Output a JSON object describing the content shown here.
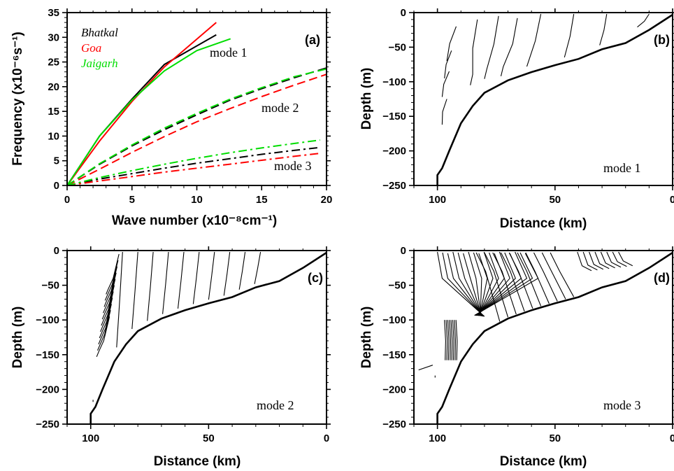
{
  "chart_data": [
    {
      "type": "line",
      "panel_label": "(a)",
      "xlabel": "Wave number (x10⁻⁸cm⁻¹)",
      "ylabel": "Frequency (x10⁻⁶s⁻¹)",
      "xlim": [
        0,
        20
      ],
      "ylim": [
        0,
        35
      ],
      "x_ticks": [
        "0",
        "5",
        "10",
        "15",
        "20"
      ],
      "y_ticks": [
        "0",
        "5",
        "10",
        "15",
        "20",
        "25",
        "30",
        "35"
      ],
      "grid": false,
      "legend": {
        "placement": "top-left",
        "entries": [
          {
            "name": "Bhatkal",
            "color": "#000000"
          },
          {
            "name": "Goa",
            "color": "#ff0000"
          },
          {
            "name": "Jaigarh",
            "color": "#00dd00"
          }
        ]
      },
      "annotations": [
        "mode 1",
        "mode 2",
        "mode 3"
      ],
      "series": [
        {
          "name": "Bhatkal",
          "mode": "mode 1",
          "style": "solid",
          "color": "#000000",
          "x": [
            0,
            2.5,
            5,
            7.5,
            9.5,
            11.5
          ],
          "y": [
            0,
            10,
            17.5,
            24.5,
            27.5,
            30.5
          ]
        },
        {
          "name": "Goa",
          "mode": "mode 1",
          "style": "solid",
          "color": "#ff0000",
          "x": [
            0,
            2.5,
            5,
            7.5,
            9.5,
            11.5
          ],
          "y": [
            0,
            9,
            17,
            24,
            28.5,
            33
          ]
        },
        {
          "name": "Jaigarh",
          "mode": "mode 1",
          "style": "solid",
          "color": "#00dd00",
          "x": [
            0,
            2.5,
            5,
            7.5,
            10,
            12.6
          ],
          "y": [
            0,
            10,
            17.3,
            23.2,
            27.3,
            29.7
          ]
        },
        {
          "name": "Bhatkal",
          "mode": "mode 2",
          "style": "dashed",
          "color": "#000000",
          "x": [
            0,
            2.5,
            5,
            7.5,
            10,
            12.5,
            15,
            17.5,
            20
          ],
          "y": [
            0,
            4.3,
            8,
            11.3,
            14.3,
            17.2,
            19.6,
            21.8,
            23.8
          ]
        },
        {
          "name": "Goa",
          "mode": "mode 2",
          "style": "dashed",
          "color": "#ff0000",
          "x": [
            0,
            2.5,
            5,
            7.5,
            10,
            12.5,
            15,
            17.5,
            20
          ],
          "y": [
            0,
            3.3,
            6.7,
            9.9,
            12.9,
            15.5,
            18,
            20.3,
            22.5
          ]
        },
        {
          "name": "Jaigarh",
          "mode": "mode 2",
          "style": "dashed",
          "color": "#00dd00",
          "x": [
            0,
            2.5,
            5,
            7.5,
            10,
            12.5,
            15,
            17.5,
            20
          ],
          "y": [
            0,
            4.4,
            8.2,
            11.6,
            14.6,
            17.4,
            19.8,
            22,
            23.6
          ]
        },
        {
          "name": "Bhatkal",
          "mode": "mode 3",
          "style": "dash-dot",
          "color": "#000000",
          "x": [
            0,
            2.5,
            5,
            7.5,
            10,
            12.5,
            15,
            17.5,
            19.5
          ],
          "y": [
            0,
            1.3,
            2.4,
            3.5,
            4.5,
            5.4,
            6.3,
            7.1,
            7.7
          ]
        },
        {
          "name": "Goa",
          "mode": "mode 3",
          "style": "dash-dot",
          "color": "#ff0000",
          "x": [
            0,
            2.5,
            5,
            7.5,
            10,
            12.5,
            15,
            17.5,
            19.5
          ],
          "y": [
            0,
            0.9,
            1.8,
            2.7,
            3.5,
            4.3,
            5.1,
            5.9,
            6.5
          ]
        },
        {
          "name": "Jaigarh",
          "mode": "mode 3",
          "style": "dash-dot",
          "color": "#00dd00",
          "x": [
            0,
            2.5,
            5,
            7.5,
            10,
            12.5,
            15,
            17.5,
            19.5
          ],
          "y": [
            0,
            1.6,
            3,
            4.3,
            5.5,
            6.6,
            7.6,
            8.5,
            9.2
          ]
        }
      ]
    },
    {
      "type": "line",
      "panel_label": "(b)",
      "annotation": "mode 1",
      "xlabel": "Distance (km)",
      "ylabel": "Depth (m)",
      "xlim": [
        110,
        0
      ],
      "ylim": [
        -250,
        0
      ],
      "x_ticks": [
        "100",
        "50",
        "0"
      ],
      "y_ticks": [
        "0",
        "−50",
        "−100",
        "−150",
        "−200",
        "−250"
      ],
      "bathymetry": {
        "distance_km": [
          0,
          10,
          20,
          30,
          40,
          50,
          60,
          70,
          80,
          85,
          90,
          95,
          98,
          100,
          100
        ],
        "depth_m": [
          -3,
          -25,
          -44,
          -53,
          -67,
          -76,
          -86,
          -98,
          -116,
          -135,
          -160,
          -200,
          -225,
          -235,
          -250
        ]
      },
      "contours": {
        "color": "#000000",
        "style": "thin solid isolines"
      }
    },
    {
      "type": "line",
      "panel_label": "(c)",
      "annotation": "mode 2",
      "xlabel": "Distance (km)",
      "ylabel": "Depth (m)",
      "xlim": [
        110,
        0
      ],
      "ylim": [
        -250,
        0
      ],
      "x_ticks": [
        "100",
        "50",
        "0"
      ],
      "y_ticks": [
        "0",
        "−50",
        "−100",
        "−150",
        "−200",
        "−250"
      ],
      "bathymetry": {
        "distance_km": [
          0,
          10,
          20,
          30,
          40,
          50,
          60,
          70,
          80,
          85,
          90,
          95,
          98,
          100,
          100
        ],
        "depth_m": [
          -3,
          -25,
          -44,
          -53,
          -67,
          -76,
          -86,
          -98,
          -116,
          -135,
          -160,
          -200,
          -225,
          -235,
          -250
        ]
      },
      "contours": {
        "color": "#000000",
        "style": "thin solid isolines"
      }
    },
    {
      "type": "line",
      "panel_label": "(d)",
      "annotation": "mode 3",
      "xlabel": "Distance (km)",
      "ylabel": "Depth (m)",
      "xlim": [
        110,
        0
      ],
      "ylim": [
        -250,
        0
      ],
      "x_ticks": [
        "100",
        "50",
        "0"
      ],
      "y_ticks": [
        "0",
        "−50",
        "−100",
        "−150",
        "−200",
        "−250"
      ],
      "bathymetry": {
        "distance_km": [
          0,
          10,
          20,
          30,
          40,
          50,
          60,
          70,
          80,
          85,
          90,
          95,
          98,
          100,
          100
        ],
        "depth_m": [
          -3,
          -25,
          -44,
          -53,
          -67,
          -76,
          -86,
          -98,
          -116,
          -135,
          -160,
          -200,
          -225,
          -235,
          -250
        ]
      },
      "contours": {
        "color": "#000000",
        "style": "thin solid isolines"
      }
    }
  ]
}
